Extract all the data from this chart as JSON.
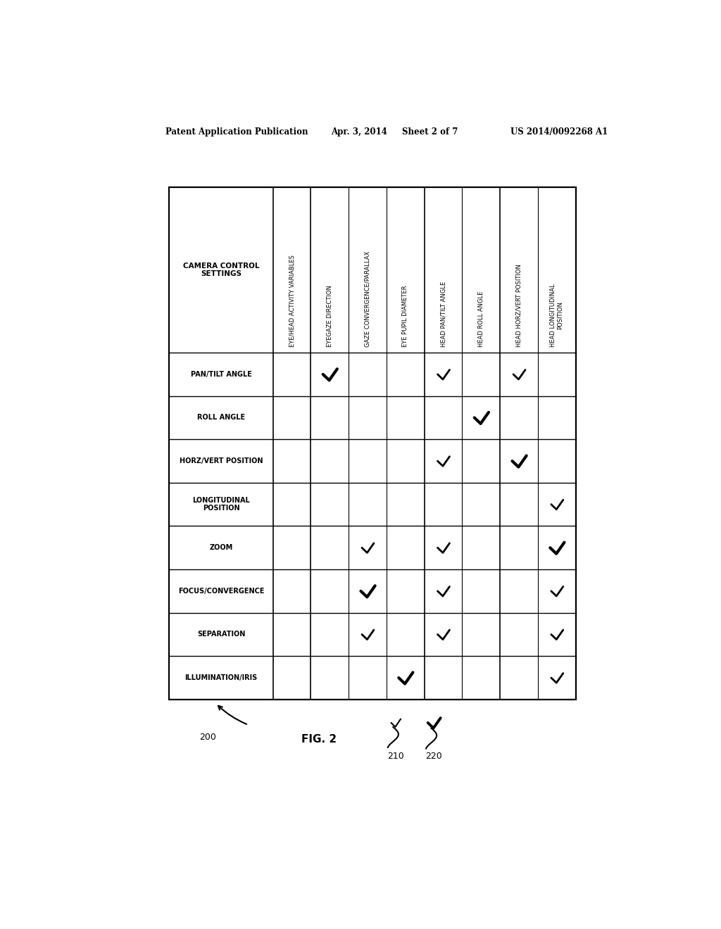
{
  "header_text": "Patent Application Publication",
  "header_date": "Apr. 3, 2014",
  "header_sheet": "Sheet 2 of 7",
  "header_patent": "US 2014/0092268 A1",
  "row_header": "CAMERA CONTROL\nSETTINGS",
  "col_headers": [
    "EYE/HEAD ACTIVITY VARIABLES",
    "EYEGAZE DIRECTION",
    "GAZE CONVERGENCE/PARALLAX",
    "EYE PUPIL DIAMETER",
    "HEAD PAN/TILT ANGLE",
    "HEAD ROLL ANGLE",
    "HEAD HORZ/VERT POSITION",
    "HEAD LONGITUDINAL\nPOSITION"
  ],
  "row_labels": [
    "PAN/TILT ANGLE",
    "ROLL ANGLE",
    "HORZ/VERT POSITION",
    "LONGITUDINAL\nPOSITION",
    "ZOOM",
    "FOCUS/CONVERGENCE",
    "SEPARATION",
    "ILLUMINATION/IRIS"
  ],
  "checks": [
    [
      0,
      1,
      0,
      0,
      1,
      0,
      1,
      0
    ],
    [
      0,
      0,
      0,
      0,
      0,
      1,
      0,
      0
    ],
    [
      0,
      0,
      0,
      0,
      1,
      0,
      1,
      0
    ],
    [
      0,
      0,
      0,
      0,
      0,
      0,
      0,
      1
    ],
    [
      0,
      0,
      1,
      0,
      1,
      0,
      0,
      1
    ],
    [
      0,
      0,
      1,
      0,
      1,
      0,
      0,
      1
    ],
    [
      0,
      0,
      1,
      0,
      1,
      0,
      0,
      1
    ],
    [
      0,
      0,
      0,
      1,
      0,
      0,
      0,
      1
    ]
  ],
  "check_bold": [
    [
      0,
      1,
      0,
      0,
      0,
      0,
      0,
      0
    ],
    [
      0,
      0,
      0,
      0,
      0,
      1,
      0,
      0
    ],
    [
      0,
      0,
      0,
      0,
      0,
      0,
      1,
      0
    ],
    [
      0,
      0,
      0,
      0,
      0,
      0,
      0,
      0
    ],
    [
      0,
      0,
      0,
      0,
      0,
      0,
      0,
      1
    ],
    [
      0,
      0,
      1,
      0,
      0,
      0,
      0,
      0
    ],
    [
      0,
      0,
      0,
      0,
      0,
      0,
      0,
      0
    ],
    [
      0,
      0,
      0,
      1,
      0,
      0,
      0,
      0
    ]
  ],
  "group_sep_after_cols": [
    3,
    5
  ],
  "fig_label": "FIG. 2",
  "fig_num": "200",
  "check_label_small": "210",
  "check_label_large": "220",
  "bg_color": "#ffffff",
  "line_color": "#000000",
  "text_color": "#000000"
}
